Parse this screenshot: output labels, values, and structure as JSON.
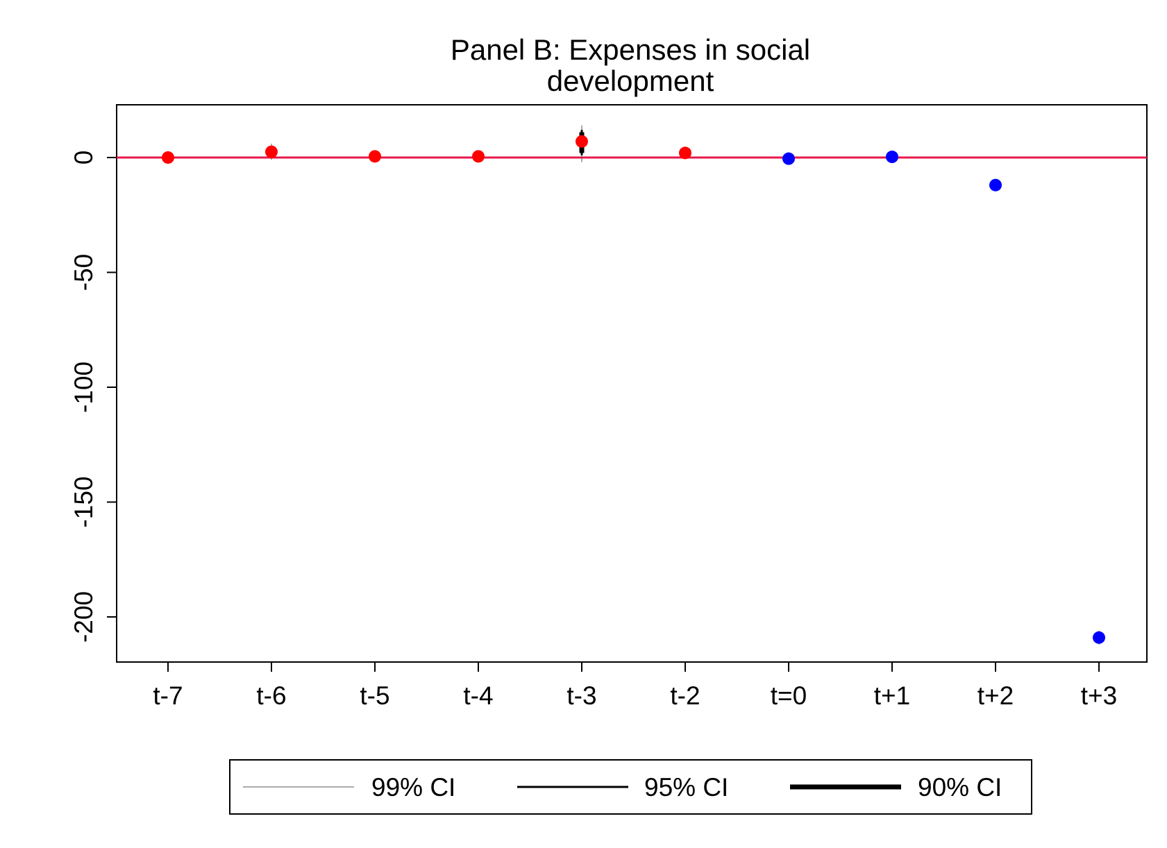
{
  "chart_data": {
    "type": "scatter",
    "title_lines": [
      "Panel B: Expenses in social",
      "development"
    ],
    "xlabel": "",
    "ylabel": "",
    "categories": [
      "t-7",
      "t-6",
      "t-5",
      "t-4",
      "t-3",
      "t-2",
      "t=0",
      "t+1",
      "t+2",
      "t+3"
    ],
    "ylim": [
      -220,
      22
    ],
    "yticks": [
      0,
      -50,
      -100,
      -150,
      -200
    ],
    "series": [
      {
        "color": "#ff0000",
        "points": [
          {
            "x": "t-7",
            "y": 0,
            "ci99": [
              -1,
              1
            ],
            "ci95": [
              -1,
              1
            ],
            "ci90": [
              0,
              0.5
            ]
          },
          {
            "x": "t-6",
            "y": 2.5,
            "ci99": [
              -1,
              6
            ],
            "ci95": [
              0,
              5
            ],
            "ci90": [
              1,
              4
            ]
          },
          {
            "x": "t-5",
            "y": 0.5,
            "ci99": [
              -2,
              3
            ],
            "ci95": [
              -1,
              2
            ],
            "ci90": [
              0,
              1.5
            ]
          },
          {
            "x": "t-4",
            "y": 0.5,
            "ci99": [
              -1,
              2
            ],
            "ci95": [
              0,
              1.5
            ],
            "ci90": [
              0,
              1
            ]
          },
          {
            "x": "t-3",
            "y": 7,
            "ci99": [
              -2,
              14
            ],
            "ci95": [
              1,
              12
            ],
            "ci90": [
              2,
              11
            ]
          },
          {
            "x": "t-2",
            "y": 2,
            "ci99": [
              0,
              4
            ],
            "ci95": [
              0.5,
              3.5
            ],
            "ci90": [
              1,
              3
            ]
          }
        ]
      },
      {
        "color": "#0000ff",
        "points": [
          {
            "x": "t=0",
            "y": -0.5,
            "ci99": [
              -2,
              1
            ],
            "ci95": [
              -1.5,
              0.5
            ],
            "ci90": [
              -1,
              0
            ]
          },
          {
            "x": "t+1",
            "y": 0.3,
            "ci99": [
              -1,
              1.5
            ],
            "ci95": [
              -0.5,
              1
            ],
            "ci90": [
              0,
              0.7
            ]
          },
          {
            "x": "t+2",
            "y": -12,
            "ci99": [
              -14,
              -10
            ],
            "ci95": [
              -13,
              -11
            ],
            "ci90": [
              -12.5,
              -11.5
            ]
          },
          {
            "x": "t+3",
            "y": -209,
            "ci99": [
              -212,
              -206
            ],
            "ci95": [
              -211,
              -207
            ],
            "ci90": [
              -210,
              -208
            ]
          }
        ]
      }
    ],
    "reference_line": {
      "y": 0,
      "color": "#e8174a"
    },
    "grid": false,
    "legend": {
      "placement": "bottom",
      "entries": [
        "99% CI",
        "95% CI",
        "90% CI"
      ]
    }
  }
}
